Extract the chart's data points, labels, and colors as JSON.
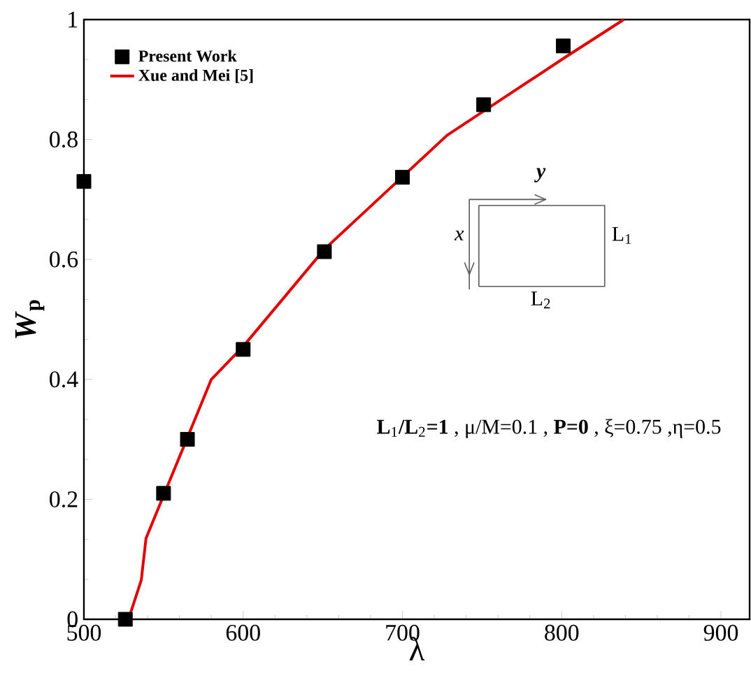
{
  "chart_data": {
    "type": "scatter",
    "xlabel": "λ",
    "ylabel": "*W*$_{p}$",
    "xlim": [
      500,
      918
    ],
    "ylim": [
      0,
      1
    ],
    "xticks": [
      500,
      600,
      700,
      800,
      900
    ],
    "yticks": [
      0,
      0.2,
      0.4,
      0.6,
      0.8,
      1
    ],
    "legend": "top left",
    "grid": false,
    "series": [
      {
        "name": "Present Work",
        "marker": "square",
        "color": "#000000",
        "x": [
          500,
          526,
          550,
          565,
          600,
          651,
          700,
          751,
          801
        ],
        "values": [
          0.73,
          0,
          0.21,
          0.3,
          0.45,
          0.613,
          0.737,
          0.858,
          0.956
        ]
      },
      {
        "name": "Xue and Mei [5]",
        "type": "line",
        "marker": "none",
        "color": "#e00000",
        "x": [
          528,
          536,
          539,
          580,
          600,
          651,
          728,
          801,
          839
        ],
        "values": [
          0,
          0.065,
          0.135,
          0.4,
          0.455,
          0.617,
          0.807,
          0.935,
          1.0
        ]
      }
    ],
    "annotations": [
      "**L**$_{1}$**/L**$_{2}$**=1** , μ/M=0.1 , **P=0** , ξ=0.75 ,η=0.5",
      "y",
      "x",
      "L$_{1}$",
      "L$_{2}$"
    ]
  }
}
